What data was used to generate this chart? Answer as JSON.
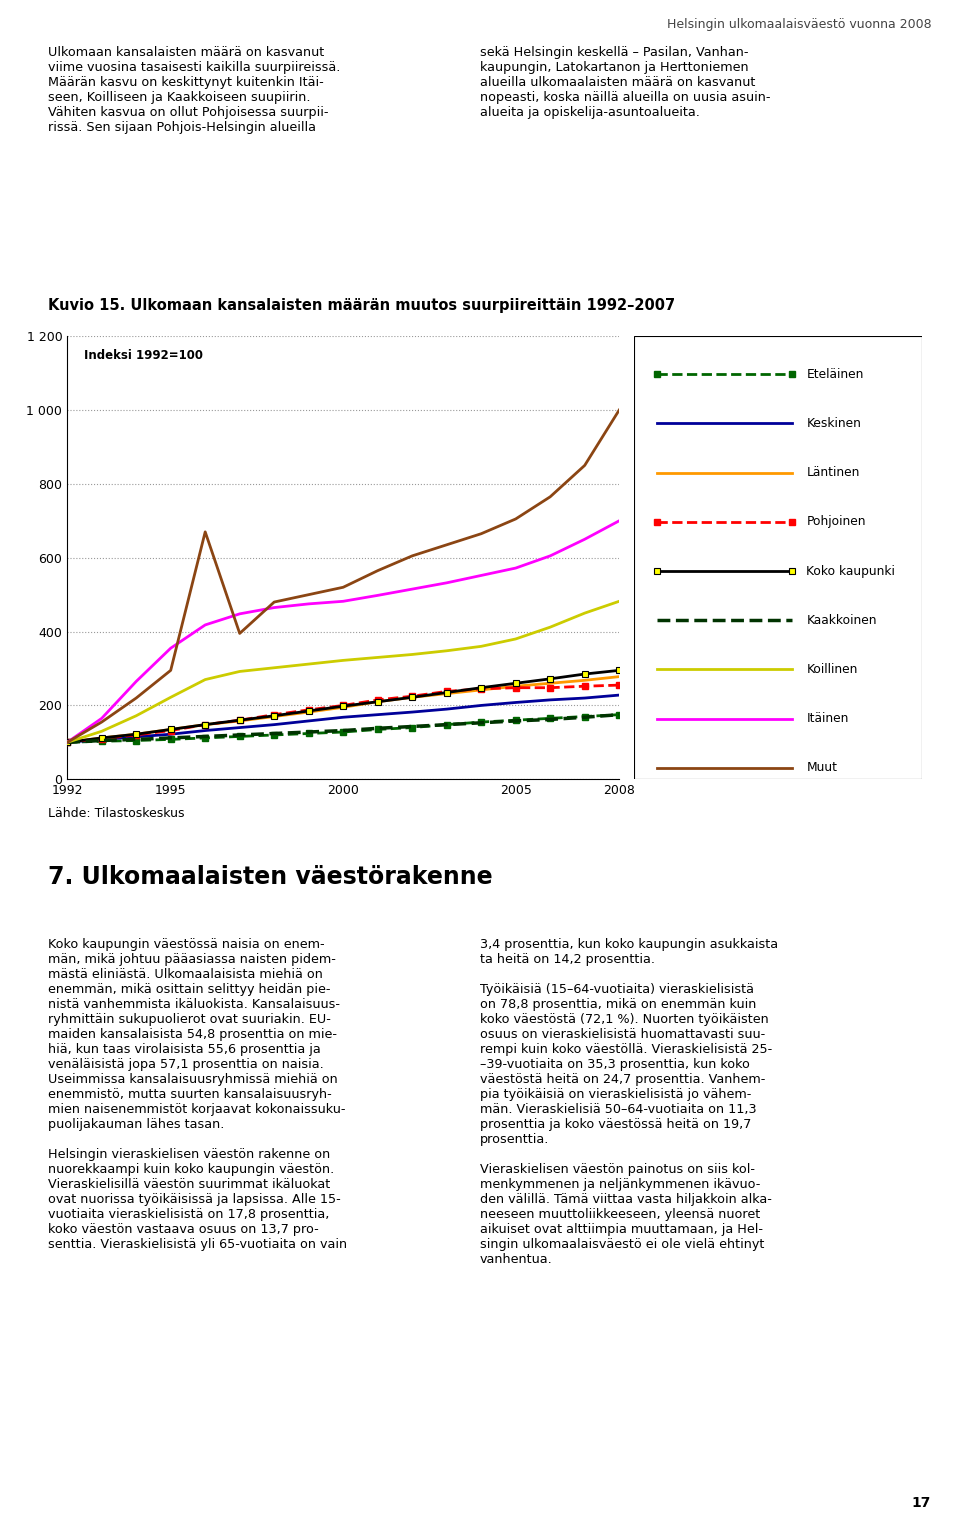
{
  "title": "Kuvio 15. Ulkomaan kansalaisten määrän muutos suurpiireittäin 1992–2007",
  "ylabel_inside": "Indeksi 1992=100",
  "years": [
    1992,
    1993,
    1994,
    1995,
    1996,
    1997,
    1998,
    1999,
    2000,
    2001,
    2002,
    2003,
    2004,
    2005,
    2006,
    2007,
    2008
  ],
  "series": {
    "Eteläinen": [
      100,
      103,
      105,
      108,
      112,
      116,
      120,
      124,
      128,
      135,
      140,
      148,
      155,
      160,
      165,
      170,
      175
    ],
    "Keskinen": [
      100,
      108,
      115,
      122,
      132,
      140,
      148,
      158,
      168,
      175,
      182,
      190,
      200,
      208,
      215,
      220,
      228
    ],
    "Läntinen": [
      100,
      112,
      122,
      135,
      148,
      158,
      170,
      182,
      195,
      210,
      222,
      232,
      242,
      252,
      260,
      268,
      278
    ],
    "Pohjoinen": [
      100,
      110,
      120,
      132,
      148,
      160,
      175,
      188,
      200,
      215,
      225,
      238,
      245,
      248,
      248,
      252,
      255
    ],
    "Koko kaupunki": [
      100,
      112,
      122,
      135,
      148,
      160,
      172,
      185,
      198,
      210,
      222,
      235,
      248,
      260,
      272,
      285,
      295
    ],
    "Kaakkoinen": [
      100,
      105,
      108,
      112,
      116,
      120,
      124,
      128,
      132,
      138,
      143,
      148,
      153,
      158,
      162,
      168,
      175
    ],
    "Koillinen": [
      100,
      130,
      172,
      222,
      270,
      292,
      302,
      312,
      322,
      330,
      338,
      348,
      360,
      380,
      412,
      450,
      482
    ],
    "Itäinen": [
      100,
      165,
      265,
      355,
      418,
      448,
      465,
      475,
      482,
      498,
      515,
      532,
      552,
      572,
      605,
      650,
      700
    ],
    "Muut": [
      100,
      155,
      220,
      295,
      670,
      395,
      480,
      500,
      520,
      565,
      605,
      635,
      665,
      705,
      765,
      850,
      1000
    ]
  },
  "series_styles": {
    "Eteläinen": {
      "color": "#006600",
      "linestyle": "--",
      "marker": "s",
      "markersize": 4,
      "linewidth": 2.0
    },
    "Keskinen": {
      "color": "#000099",
      "linestyle": "-",
      "marker": null,
      "markersize": 0,
      "linewidth": 2.0
    },
    "Läntinen": {
      "color": "#ff9900",
      "linestyle": "-",
      "marker": null,
      "markersize": 0,
      "linewidth": 2.0
    },
    "Pohjoinen": {
      "color": "#ff0000",
      "linestyle": "--",
      "marker": "s",
      "markersize": 4,
      "linewidth": 2.0
    },
    "Koko kaupunki": {
      "color": "#000000",
      "linestyle": "-",
      "marker": "s",
      "markersize": 5,
      "linewidth": 2.0
    },
    "Kaakkoinen": {
      "color": "#003300",
      "linestyle": "--",
      "marker": null,
      "markersize": 0,
      "linewidth": 2.5
    },
    "Koillinen": {
      "color": "#cccc00",
      "linestyle": "-",
      "marker": null,
      "markersize": 0,
      "linewidth": 2.0
    },
    "Itäinen": {
      "color": "#ff00ff",
      "linestyle": "-",
      "marker": null,
      "markersize": 0,
      "linewidth": 2.0
    },
    "Muut": {
      "color": "#8B4513",
      "linestyle": "-",
      "marker": null,
      "markersize": 0,
      "linewidth": 2.0
    }
  },
  "ylim": [
    0,
    1200
  ],
  "yticks": [
    0,
    200,
    400,
    600,
    800,
    1000,
    1200
  ],
  "xticks": [
    1992,
    1995,
    2000,
    2005,
    2008
  ],
  "grid_color": "#999999",
  "bg_color": "#ffffff",
  "header_text_left": "Ulkomaan kansalaisten määrä on kasvanut\nviime vuosina tasaisesti kaikilla suurpiireissä.\nMäärän kasvu on keskittynyt kuitenkin Itäi-\nseen, Koilliseen ja Kaakkoiseen suupiirin.\nVähiten kasvua on ollut Pohjoisessa suurpii-\nrissä. Sen sijaan Pohjois-Helsingin alueilla",
  "header_text_right": "sekä Helsingin keskellä – Pasilan, Vanhan-\nkaupungin, Latokartanon ja Herttoniemen\nalueilla ulkomaalaisten määrä on kasvanut\nnopeasti, koska näillä alueilla on uusia asuin-\nalueita ja opiskelija-asuntoalueita.",
  "page_header": "Helsingin ulkomaalaisväestö vuonna 2008",
  "chart_title": "Kuvio 15. Ulkomaan kansalaisten määrän muutos suurpiireittäin 1992–2007",
  "footer": "Lähde: Tilastoskeskus",
  "section_header": "7. Ulkomaalaisten väestörakenne",
  "body_left": "Koko kaupungin väestössä naisia on enem-\nmän, mikä johtuu pääasiassa naisten pidem-\nmästä eliniästä. Ulkomaalaisista miehiä on\nenemmän, mikä osittain selittyy heidän pie-\nnistä vanhemmista ikäluokista. Kansalaisuus-\nryhmittäin sukupuolierot ovat suuriakin. EU-\nmaiden kansalaisista 54,8 prosenttia on mie-\nhiä, kun taas virolaisista 55,6 prosenttia ja\nvenäläisistä jopa 57,1 prosenttia on naisia.\nUseimmissa kansalaisuusryhmissä miehiä on\nenemmistö, mutta suurten kansalaisuusryh-\nmien naisenemmistöt korjaavat kokonaissuku-\npuolijakauman lähes tasan.\n\nHelsingin vieraskielisen väestön rakenne on\nnuorekkaampi kuin koko kaupungin väestön.\nVieraskielisillä väestön suurimmat ikäluokat\novat nuorissa työikäisissä ja lapsissa. Alle 15-\nvuotiaita vieraskielisistä on 17,8 prosenttia,\nkoko väestön vastaava osuus on 13,7 pro-\nsenttia. Vieraskielisistä yli 65-vuotiaita on vain",
  "body_right": "3,4 prosenttia, kun koko kaupungin asukkaista\nta heitä on 14,2 prosenttia.\n\nTyöikäisiä (15–64-vuotiaita) vieraskielisistä\non 78,8 prosenttia, mikä on enemmän kuin\nkoko väestöstä (72,1 %). Nuorten työikäisten\nosuus on vieraskielisistä huomattavasti suu-\nrempi kuin koko väestöllä. Vieraskielisistä 25-\n–39-vuotiaita on 35,3 prosenttia, kun koko\nväestöstä heitä on 24,7 prosenttia. Vanhem-\npia työikäisiä on vieraskielisistä jo vähem-\nmän. Vieraskielisiä 50–64-vuotiaita on 11,3\nprosenttia ja koko väestössä heitä on 19,7\nprosenttia.\n\nVieraskielisen väestön painotus on siis kol-\nmenkymmenen ja neljänkymmenen ikävuo-\nden välillä. Tämä viittaa vasta hiljakkoin alka-\nneeseen muuttoliikkeeseen, yleensä nuoret\naikuiset ovat alttiimpia muuttamaan, ja Hel-\nsingin ulkomaalaisväestö ei ole vielä ehtinyt\nvanhentua.",
  "page_number": "17"
}
